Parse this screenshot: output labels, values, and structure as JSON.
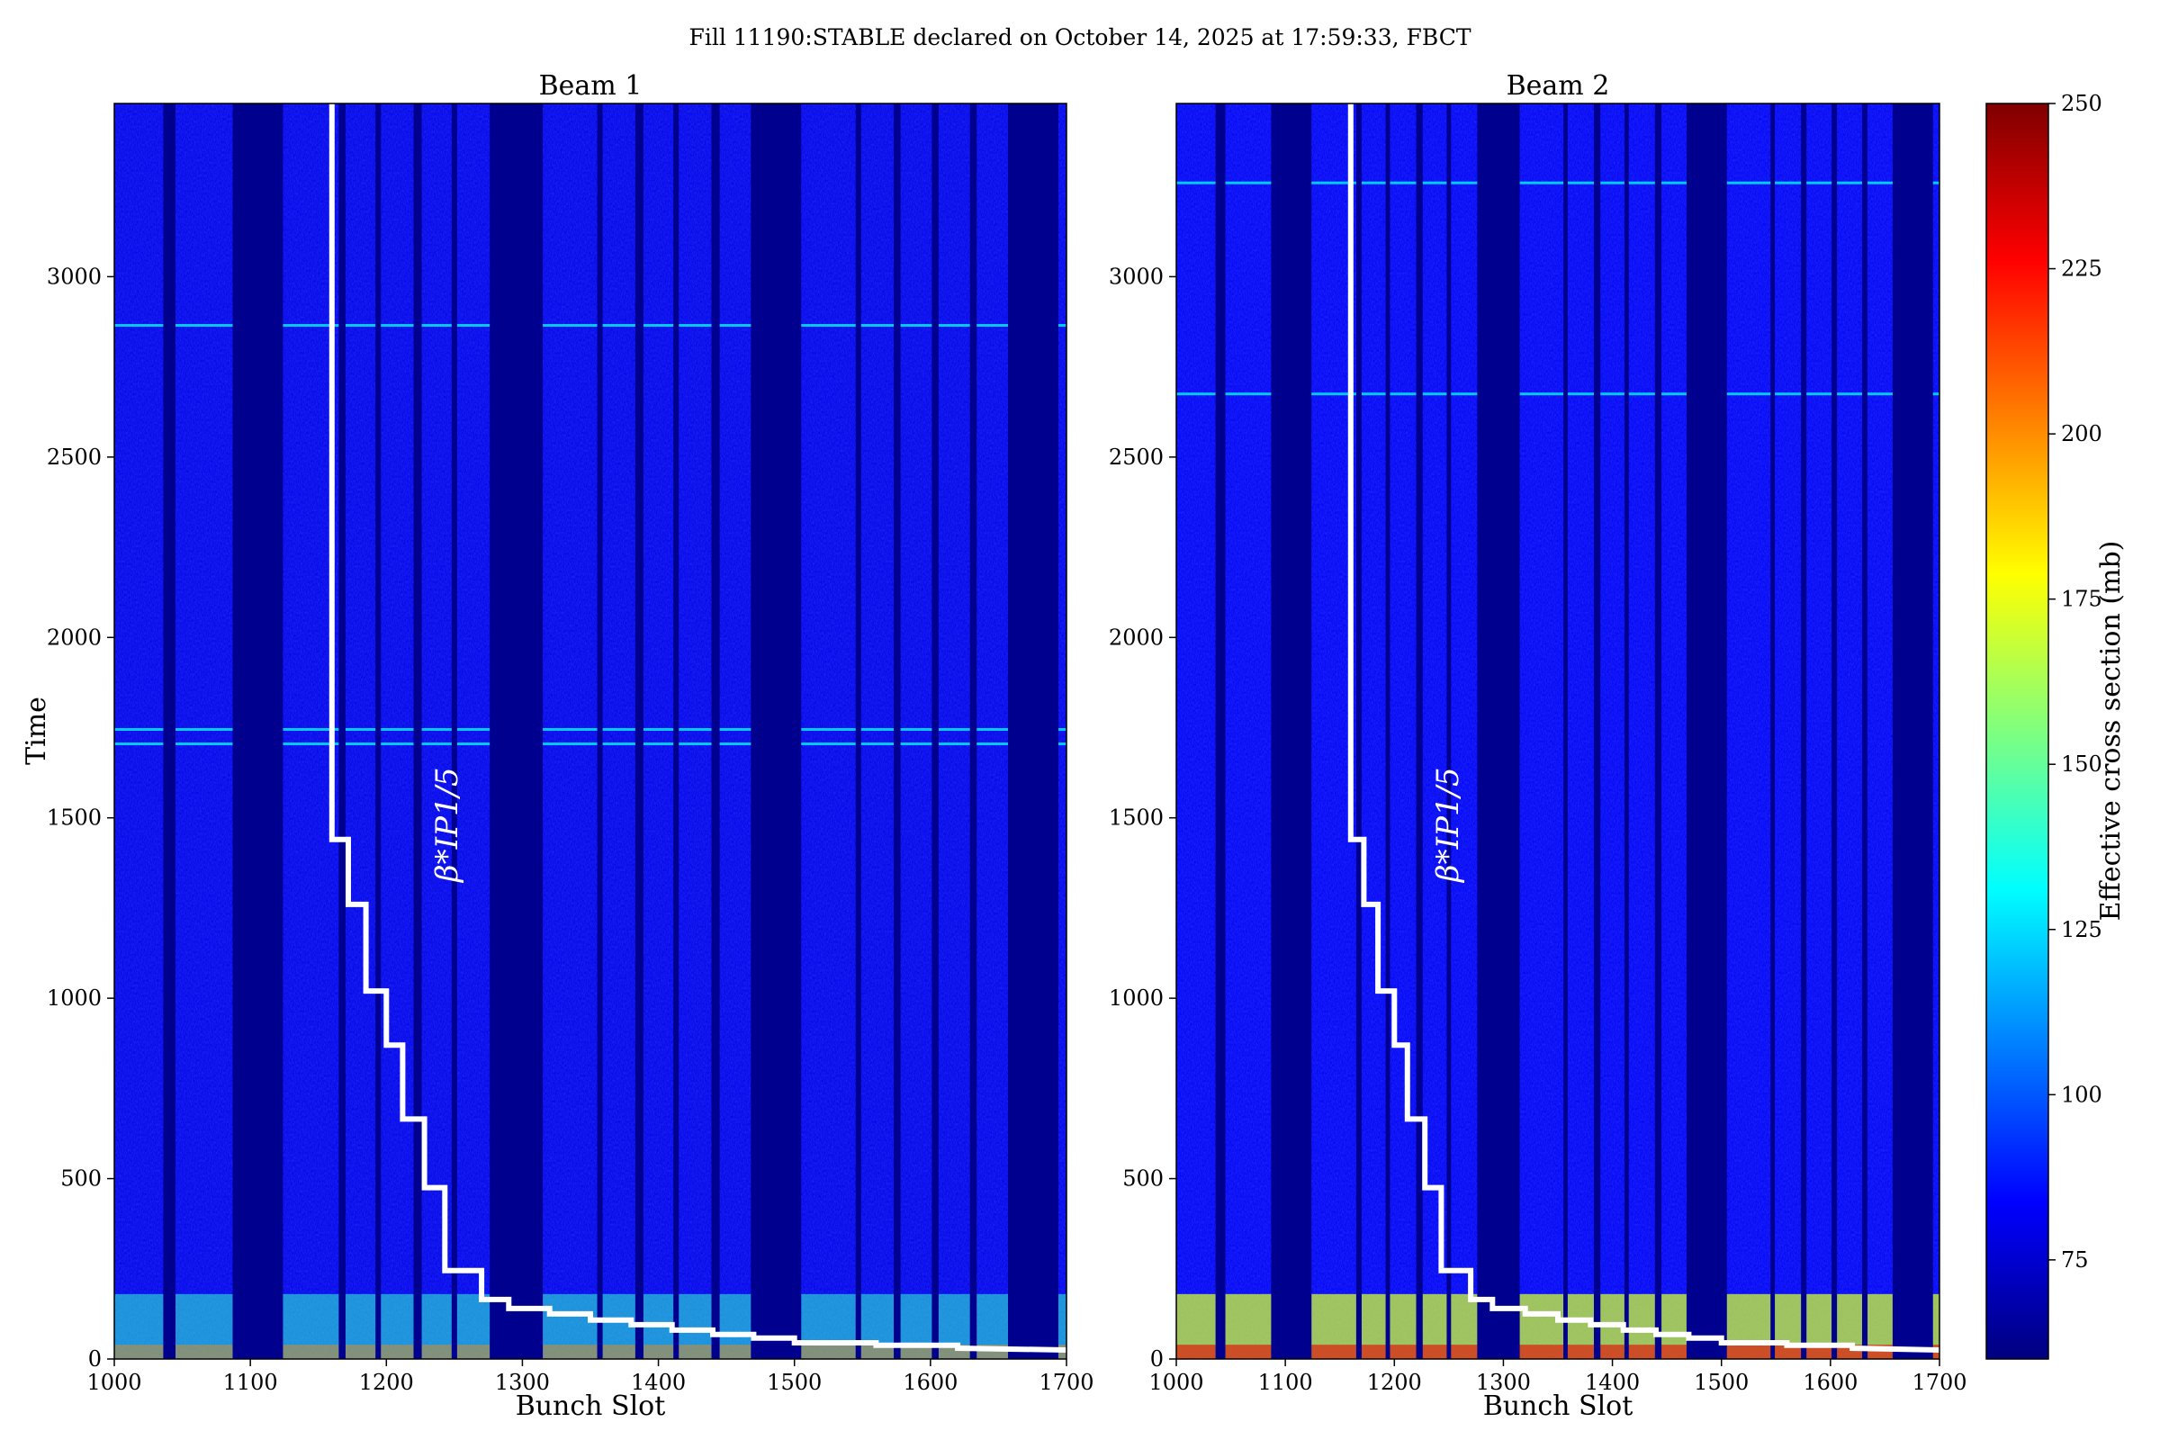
{
  "chart_data": {
    "type": "heatmap",
    "title": "Fill 11190:STABLE declared on October 14, 2025 at 17:59:33, FBCT",
    "xlabel": "Bunch Slot",
    "ylabel": "Time",
    "xlim": [
      1000,
      1700
    ],
    "ylim": [
      0,
      3480
    ],
    "x_ticks": [
      1000,
      1100,
      1200,
      1300,
      1400,
      1500,
      1600,
      1700
    ],
    "y_ticks": [
      500,
      1000,
      1500,
      2000,
      2500,
      3000
    ],
    "colorbar": {
      "label": "Effective cross section (mb)",
      "range": [
        60,
        250
      ],
      "ticks": [
        75,
        100,
        125,
        150,
        175,
        200,
        225,
        250
      ],
      "colormap": "jet"
    },
    "empty_slot_ranges": [
      [
        1036,
        1045
      ],
      [
        1087,
        1124
      ],
      [
        1165,
        1170
      ],
      [
        1192,
        1196
      ],
      [
        1220,
        1226
      ],
      [
        1248,
        1252
      ],
      [
        1276,
        1315
      ],
      [
        1355,
        1359
      ],
      [
        1383,
        1389
      ],
      [
        1411,
        1415
      ],
      [
        1439,
        1445
      ],
      [
        1468,
        1505
      ],
      [
        1545,
        1549
      ],
      [
        1573,
        1578
      ],
      [
        1601,
        1606
      ],
      [
        1629,
        1634
      ],
      [
        1657,
        1694
      ]
    ],
    "beta_star_annotation": "β*IP1/5",
    "beta_star_curve": [
      [
        1160,
        3480
      ],
      [
        1160,
        1440
      ],
      [
        1172,
        1440
      ],
      [
        1172,
        1260
      ],
      [
        1185,
        1260
      ],
      [
        1185,
        1020
      ],
      [
        1200,
        1020
      ],
      [
        1200,
        870
      ],
      [
        1212,
        870
      ],
      [
        1212,
        665
      ],
      [
        1228,
        665
      ],
      [
        1228,
        475
      ],
      [
        1243,
        475
      ],
      [
        1243,
        245
      ],
      [
        1270,
        245
      ],
      [
        1270,
        165
      ],
      [
        1290,
        165
      ],
      [
        1290,
        140
      ],
      [
        1320,
        140
      ],
      [
        1320,
        125
      ],
      [
        1350,
        125
      ],
      [
        1350,
        108
      ],
      [
        1380,
        108
      ],
      [
        1380,
        95
      ],
      [
        1410,
        95
      ],
      [
        1410,
        80
      ],
      [
        1440,
        80
      ],
      [
        1440,
        68
      ],
      [
        1470,
        68
      ],
      [
        1470,
        58
      ],
      [
        1500,
        58
      ],
      [
        1500,
        45
      ],
      [
        1560,
        45
      ],
      [
        1560,
        38
      ],
      [
        1620,
        38
      ],
      [
        1620,
        30
      ],
      [
        1700,
        25
      ]
    ],
    "series": [
      {
        "name": "Beam 1",
        "background_value": 80,
        "hot_band": {
          "y_range": [
            0,
            180
          ],
          "value": 140
        },
        "streaks_time": [
          2865,
          1745,
          1705
        ]
      },
      {
        "name": "Beam 2",
        "background_value": 82,
        "hot_band": {
          "y_range": [
            0,
            180
          ],
          "value": 170
        },
        "streaks_time": [
          3260,
          2675
        ]
      }
    ]
  },
  "colors": {
    "empty_slot": "#00008f",
    "filled_base": "#1a2fd8",
    "curve": "#ffffff"
  }
}
